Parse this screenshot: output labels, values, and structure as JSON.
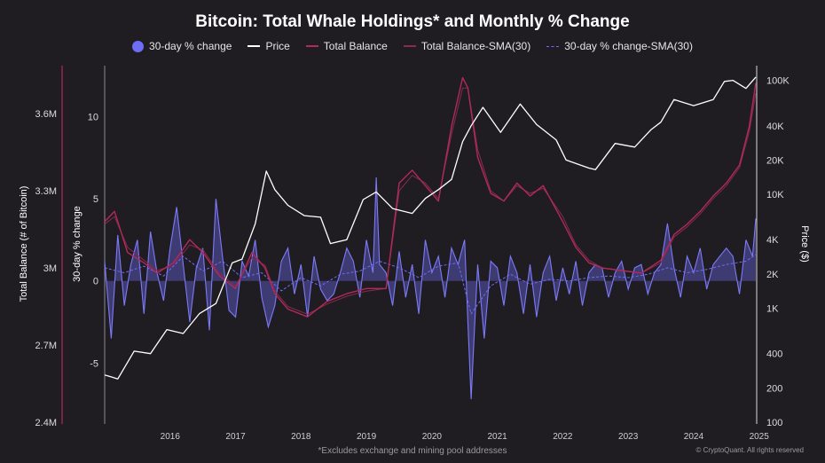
{
  "chart_data": {
    "type": "line",
    "title": "Bitcoin: Total Whale Holdings* and Monthly % Change",
    "legend": [
      {
        "label": "30-day % change",
        "color": "#6f6cf5",
        "style": "dot"
      },
      {
        "label": "Price",
        "color": "#ffffff",
        "style": "line"
      },
      {
        "label": "Total Balance",
        "color": "#b02a5a",
        "style": "line"
      },
      {
        "label": "Total Balance-SMA(30)",
        "color": "#8a2a4e",
        "style": "line"
      },
      {
        "label": "30-day % change-SMA(30)",
        "color": "#6f6cf5",
        "style": "dash"
      }
    ],
    "legend_position": "top-center",
    "grid": false,
    "x_ticks": [
      "2016",
      "2017",
      "2018",
      "2019",
      "2020",
      "2021",
      "2022",
      "2023",
      "2024",
      "2025"
    ],
    "x_range": [
      2015.5,
      2025.45
    ],
    "axes": {
      "left_balance": {
        "label": "Total Balance (# of Bitcoin)",
        "ticks": [
          "3.6M",
          "3.3M",
          "3M",
          "2.7M",
          "2.4M"
        ],
        "tick_values": [
          3600000,
          3300000,
          3000000,
          2700000,
          2400000
        ],
        "range": [
          2400000,
          3780000
        ]
      },
      "left_change": {
        "label": "30-day % change",
        "ticks": [
          "10",
          "5",
          "0",
          "-5"
        ],
        "tick_values": [
          10,
          5,
          0,
          -5
        ],
        "range": [
          -8.6,
          13.0
        ]
      },
      "right_price": {
        "label": "Price ($)",
        "scale": "log",
        "ticks": [
          "100K",
          "40K",
          "20K",
          "10K",
          "4K",
          "2K",
          "1K",
          "400",
          "200",
          "100"
        ],
        "tick_values": [
          100000,
          40000,
          20000,
          10000,
          4000,
          2000,
          1000,
          400,
          200,
          100
        ],
        "range": [
          100,
          130000
        ]
      }
    },
    "series": [
      {
        "name": "Price",
        "axis": "right_price",
        "x": [
          2015.5,
          2015.7,
          2015.95,
          2016.2,
          2016.45,
          2016.7,
          2016.95,
          2017.2,
          2017.45,
          2017.6,
          2017.8,
          2017.97,
          2018.1,
          2018.3,
          2018.55,
          2018.8,
          2018.95,
          2019.2,
          2019.45,
          2019.65,
          2019.9,
          2020.2,
          2020.4,
          2020.6,
          2020.8,
          2020.97,
          2021.1,
          2021.28,
          2021.55,
          2021.85,
          2022.1,
          2022.4,
          2022.55,
          2022.9,
          2023.0,
          2023.3,
          2023.6,
          2023.85,
          2024.0,
          2024.2,
          2024.5,
          2024.8,
          2024.97,
          2025.1,
          2025.3,
          2025.45
        ],
        "y": [
          260,
          240,
          420,
          400,
          650,
          600,
          900,
          1100,
          2500,
          2700,
          5500,
          16000,
          11000,
          8000,
          6500,
          6300,
          3700,
          4000,
          9000,
          10500,
          7500,
          6800,
          9200,
          11000,
          13500,
          29000,
          40000,
          58000,
          35000,
          62000,
          41000,
          30000,
          20000,
          17000,
          16500,
          28000,
          26000,
          37000,
          43000,
          68000,
          60000,
          68000,
          98000,
          100000,
          85000,
          107000
        ]
      },
      {
        "name": "Total Balance",
        "axis": "left_balance",
        "x": [
          2015.5,
          2015.65,
          2015.85,
          2016.1,
          2016.3,
          2016.55,
          2016.8,
          2017.0,
          2017.25,
          2017.5,
          2017.75,
          2017.95,
          2018.1,
          2018.3,
          2018.6,
          2018.9,
          2019.2,
          2019.5,
          2019.8,
          2020.0,
          2020.2,
          2020.4,
          2020.6,
          2020.8,
          2020.97,
          2021.05,
          2021.2,
          2021.4,
          2021.6,
          2021.8,
          2022.0,
          2022.2,
          2022.5,
          2022.7,
          2022.9,
          2023.1,
          2023.4,
          2023.7,
          2024.0,
          2024.2,
          2024.4,
          2024.6,
          2024.8,
          2025.0,
          2025.2,
          2025.35,
          2025.45
        ],
        "y": [
          3180000,
          3220000,
          3060000,
          3020000,
          2980000,
          3020000,
          3110000,
          3060000,
          2970000,
          2920000,
          3060000,
          3000000,
          2900000,
          2840000,
          2810000,
          2870000,
          2900000,
          2920000,
          2920000,
          3330000,
          3380000,
          3320000,
          3260000,
          3550000,
          3740000,
          3700000,
          3430000,
          3290000,
          3260000,
          3330000,
          3280000,
          3320000,
          3180000,
          3080000,
          3020000,
          3000000,
          2990000,
          2980000,
          3030000,
          3130000,
          3170000,
          3220000,
          3280000,
          3330000,
          3400000,
          3550000,
          3720000
        ]
      },
      {
        "name": "Total Balance-SMA(30)",
        "axis": "left_balance",
        "x": [
          2015.5,
          2015.65,
          2015.85,
          2016.1,
          2016.3,
          2016.55,
          2016.8,
          2017.0,
          2017.25,
          2017.5,
          2017.75,
          2017.95,
          2018.1,
          2018.3,
          2018.6,
          2018.9,
          2019.2,
          2019.5,
          2019.8,
          2020.0,
          2020.2,
          2020.4,
          2020.6,
          2020.8,
          2020.97,
          2021.05,
          2021.2,
          2021.4,
          2021.6,
          2021.8,
          2022.0,
          2022.2,
          2022.5,
          2022.7,
          2022.9,
          2023.1,
          2023.4,
          2023.7,
          2024.0,
          2024.2,
          2024.4,
          2024.6,
          2024.8,
          2025.0,
          2025.2,
          2025.35,
          2025.45
        ],
        "y": [
          3170000,
          3200000,
          3080000,
          3030000,
          2990000,
          3010000,
          3090000,
          3070000,
          2980000,
          2930000,
          3040000,
          3010000,
          2910000,
          2850000,
          2820000,
          2860000,
          2890000,
          2910000,
          2920000,
          3300000,
          3360000,
          3330000,
          3270000,
          3520000,
          3700000,
          3700000,
          3460000,
          3300000,
          3260000,
          3320000,
          3290000,
          3310000,
          3200000,
          3090000,
          3030000,
          3000000,
          2990000,
          2980000,
          3020000,
          3120000,
          3160000,
          3210000,
          3270000,
          3320000,
          3390000,
          3530000,
          3680000
        ]
      },
      {
        "name": "30-day % change",
        "axis": "left_change",
        "x": [
          2015.5,
          2015.6,
          2015.7,
          2015.8,
          2015.9,
          2016.0,
          2016.1,
          2016.2,
          2016.3,
          2016.4,
          2016.5,
          2016.6,
          2016.7,
          2016.8,
          2016.9,
          2017.0,
          2017.1,
          2017.2,
          2017.3,
          2017.4,
          2017.5,
          2017.6,
          2017.7,
          2017.8,
          2017.9,
          2018.0,
          2018.1,
          2018.2,
          2018.3,
          2018.4,
          2018.5,
          2018.6,
          2018.7,
          2018.8,
          2018.9,
          2019.0,
          2019.1,
          2019.2,
          2019.3,
          2019.4,
          2019.5,
          2019.6,
          2019.65,
          2019.7,
          2019.8,
          2019.9,
          2020.0,
          2020.1,
          2020.2,
          2020.3,
          2020.4,
          2020.5,
          2020.6,
          2020.7,
          2020.8,
          2020.9,
          2021.0,
          2021.05,
          2021.1,
          2021.15,
          2021.2,
          2021.3,
          2021.4,
          2021.5,
          2021.6,
          2021.7,
          2021.8,
          2021.9,
          2022.0,
          2022.1,
          2022.2,
          2022.3,
          2022.4,
          2022.5,
          2022.6,
          2022.7,
          2022.8,
          2022.9,
          2023.0,
          2023.1,
          2023.2,
          2023.3,
          2023.4,
          2023.5,
          2023.6,
          2023.7,
          2023.8,
          2023.9,
          2024.0,
          2024.1,
          2024.2,
          2024.3,
          2024.4,
          2024.5,
          2024.6,
          2024.7,
          2024.8,
          2024.9,
          2025.0,
          2025.1,
          2025.2,
          2025.3,
          2025.4,
          2025.45
        ],
        "y": [
          1.2,
          -3.5,
          2.8,
          -1.5,
          1.0,
          2.5,
          -2.0,
          3.0,
          0.5,
          -1.2,
          2.0,
          4.5,
          1.0,
          -2.5,
          0.8,
          2.0,
          -3.0,
          5.0,
          1.5,
          -1.8,
          -2.2,
          1.2,
          0.3,
          2.5,
          -1.0,
          -2.8,
          -1.5,
          1.2,
          2.0,
          -0.8,
          1.0,
          -2.2,
          1.5,
          -0.5,
          -1.2,
          -0.8,
          0.5,
          2.0,
          1.2,
          -1.0,
          2.5,
          0.5,
          6.3,
          1.0,
          0.5,
          -1.5,
          1.8,
          -1.0,
          1.0,
          -2.0,
          2.5,
          0.5,
          1.5,
          -1.0,
          2.0,
          1.0,
          2.5,
          -2.5,
          -7.2,
          -3.0,
          1.0,
          -3.5,
          1.2,
          0.8,
          -1.5,
          1.5,
          0.5,
          -2.0,
          1.0,
          -2.2,
          0.5,
          1.5,
          -1.2,
          0.8,
          -0.8,
          1.2,
          -1.5,
          0.5,
          1.0,
          0.8,
          -1.0,
          0.5,
          1.2,
          -0.5,
          0.8,
          1.0,
          -0.8,
          0.5,
          1.0,
          3.5,
          0.8,
          -1.0,
          1.5,
          0.5,
          2.0,
          -0.5,
          1.0,
          1.5,
          2.0,
          1.5,
          -0.8,
          2.5,
          1.5,
          3.8
        ]
      },
      {
        "name": "30-day % change-SMA(30)",
        "axis": "left_change",
        "x": [
          2015.5,
          2015.8,
          2016.1,
          2016.4,
          2016.7,
          2017.0,
          2017.3,
          2017.6,
          2017.9,
          2018.2,
          2018.5,
          2018.8,
          2019.1,
          2019.4,
          2019.7,
          2020.0,
          2020.3,
          2020.6,
          2020.9,
          2021.1,
          2021.4,
          2021.7,
          2022.0,
          2022.3,
          2022.6,
          2022.9,
          2023.2,
          2023.5,
          2023.8,
          2024.1,
          2024.4,
          2024.7,
          2025.0,
          2025.3,
          2025.45
        ],
        "y": [
          0.8,
          0.5,
          0.9,
          0.3,
          1.5,
          0.6,
          1.2,
          0.2,
          0.5,
          -0.6,
          0.2,
          -0.3,
          0.4,
          0.6,
          1.2,
          0.8,
          0.2,
          0.9,
          1.1,
          -2.0,
          -0.3,
          0.4,
          -0.2,
          0.1,
          0.0,
          0.2,
          0.3,
          0.2,
          0.4,
          0.8,
          0.5,
          0.7,
          1.0,
          1.2,
          1.6
        ]
      }
    ]
  },
  "footnote": "*Excludes exchange and mining pool addresses",
  "credit": "© CryptoQuant. All rights reserved"
}
